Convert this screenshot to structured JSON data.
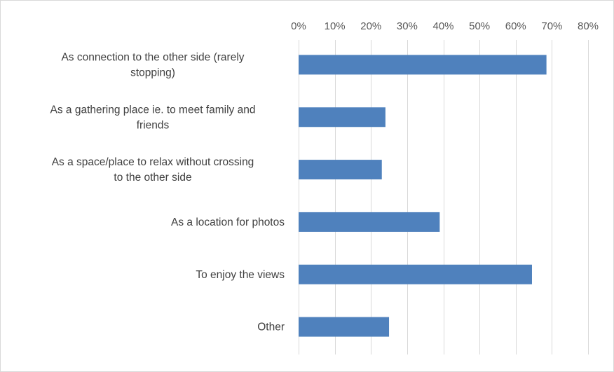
{
  "chart_data": {
    "type": "bar",
    "orientation": "horizontal",
    "x_axis_position": "top",
    "grid": true,
    "legend": "none",
    "categories": [
      [
        "As connection to the other side (rarely",
        "stopping)"
      ],
      [
        "As a gathering place ie. to meet family and",
        "friends"
      ],
      [
        "As a space/place to relax without crossing",
        "to the other side"
      ],
      [
        "As a location for photos"
      ],
      [
        "To enjoy the views"
      ],
      [
        "Other"
      ]
    ],
    "values": [
      0.685,
      0.24,
      0.23,
      0.39,
      0.645,
      0.25
    ],
    "xlim": [
      0,
      0.8
    ],
    "ticks": [
      0,
      0.1,
      0.2,
      0.3,
      0.4,
      0.5,
      0.6,
      0.7,
      0.8
    ],
    "tick_labels": [
      "0%",
      "10%",
      "20%",
      "30%",
      "40%",
      "50%",
      "60%",
      "70%",
      "80%"
    ],
    "colors": {
      "bar": "#4f81bd",
      "grid": "#d9d9d9",
      "tick_text": "#595959",
      "label_text": "#404040"
    }
  }
}
